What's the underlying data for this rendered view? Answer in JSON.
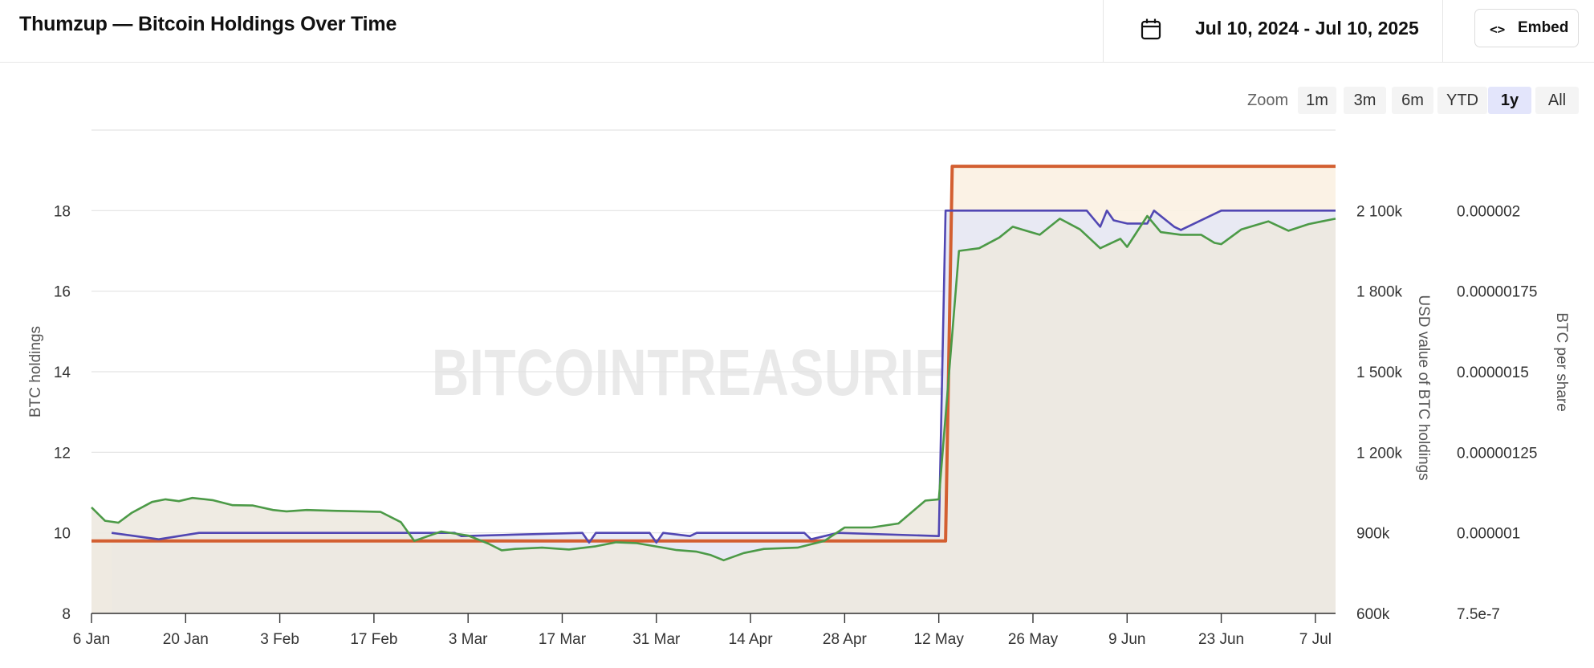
{
  "header": {
    "title": "Thumzup — Bitcoin Holdings Over Time",
    "date_range": "Jul 10, 2024 - Jul 10, 2025",
    "embed_label": "Embed",
    "icons": {
      "calendar": "calendar-icon",
      "embed": "code-icon"
    }
  },
  "zoom": {
    "label": "Zoom",
    "options": [
      "1m",
      "3m",
      "6m",
      "YTD",
      "1y",
      "All"
    ],
    "selected": "1y"
  },
  "watermark": "BITCOINTREASURIES.NET",
  "chart_data": {
    "type": "line",
    "grid": true,
    "x_ticks": [
      "6 Jan",
      "20 Jan",
      "3 Feb",
      "17 Feb",
      "3 Mar",
      "17 Mar",
      "31 Mar",
      "14 Apr",
      "28 Apr",
      "12 May",
      "26 May",
      "9 Jun",
      "23 Jun",
      "7 Jul"
    ],
    "x_tick_dates": [
      "2025-01-06",
      "2025-01-20",
      "2025-02-03",
      "2025-02-17",
      "2025-03-03",
      "2025-03-17",
      "2025-03-31",
      "2025-04-14",
      "2025-04-28",
      "2025-05-12",
      "2025-05-26",
      "2025-06-09",
      "2025-06-23",
      "2025-07-07"
    ],
    "x_range": [
      "2025-01-06",
      "2025-07-10"
    ],
    "axes": {
      "left": {
        "title": "BTC holdings",
        "ticks": [
          8,
          10,
          12,
          14,
          16,
          18
        ],
        "tick_labels": [
          "8",
          "10",
          "12",
          "14",
          "16",
          "18"
        ],
        "range": [
          8,
          20
        ]
      },
      "right1": {
        "title": "USD value of BTC holdings",
        "ticks": [
          600000,
          900000,
          1200000,
          1500000,
          1800000,
          2100000
        ],
        "tick_labels": [
          "600k",
          "900k",
          "1 200k",
          "1 500k",
          "1 800k",
          "2 100k"
        ],
        "range": [
          600000,
          2400000
        ]
      },
      "right2": {
        "title": "BTC per share",
        "ticks": [
          7.5e-07,
          1e-06,
          1.25e-06,
          1.5e-06,
          1.75e-06,
          2e-06
        ],
        "tick_labels": [
          "7.5e-7",
          "0.000001",
          "0.00000125",
          "0.0000015",
          "0.00000175",
          "0.000002"
        ],
        "range": [
          7.5e-07,
          2.25e-06
        ]
      }
    },
    "colors": {
      "btc_holdings": "#d35f31",
      "usd_value": "#4c9a47",
      "btc_per_share": "#5147b3",
      "fill_holdings": "#fbf1e2",
      "fill_usd": "#ede9e0",
      "fill_per_share": "#e6e8f4"
    },
    "series": [
      {
        "key": "btc_holdings",
        "axis": "left",
        "step": true,
        "x": [
          "2025-01-06",
          "2025-05-13",
          "2025-05-14",
          "2025-07-10"
        ],
        "values": [
          9.8,
          9.8,
          19.1,
          19.1
        ]
      },
      {
        "key": "usd_value",
        "axis": "right1",
        "x": [
          "2025-01-06",
          "2025-01-08",
          "2025-01-10",
          "2025-01-12",
          "2025-01-15",
          "2025-01-17",
          "2025-01-19",
          "2025-01-21",
          "2025-01-24",
          "2025-01-27",
          "2025-01-30",
          "2025-02-02",
          "2025-02-04",
          "2025-02-07",
          "2025-02-11",
          "2025-02-15",
          "2025-02-18",
          "2025-02-21",
          "2025-02-23",
          "2025-02-27",
          "2025-03-03",
          "2025-03-06",
          "2025-03-08",
          "2025-03-10",
          "2025-03-14",
          "2025-03-18",
          "2025-03-22",
          "2025-03-25",
          "2025-03-28",
          "2025-04-01",
          "2025-04-03",
          "2025-04-06",
          "2025-04-08",
          "2025-04-10",
          "2025-04-13",
          "2025-04-16",
          "2025-04-21",
          "2025-04-25",
          "2025-04-28",
          "2025-05-02",
          "2025-05-06",
          "2025-05-10",
          "2025-05-12",
          "2025-05-15",
          "2025-05-18",
          "2025-05-21",
          "2025-05-23",
          "2025-05-27",
          "2025-05-30",
          "2025-06-02",
          "2025-06-05",
          "2025-06-08",
          "2025-06-09",
          "2025-06-12",
          "2025-06-14",
          "2025-06-17",
          "2025-06-20",
          "2025-06-22",
          "2025-06-23",
          "2025-06-26",
          "2025-06-30",
          "2025-07-03",
          "2025-07-06",
          "2025-07-08",
          "2025-07-10"
        ],
        "values": [
          995000,
          945000,
          938000,
          975000,
          1015000,
          1025000,
          1018000,
          1030000,
          1022000,
          1003000,
          1002000,
          985000,
          980000,
          985000,
          982000,
          980000,
          978000,
          940000,
          870000,
          905000,
          890000,
          860000,
          835000,
          840000,
          845000,
          838000,
          850000,
          865000,
          862000,
          845000,
          836000,
          830000,
          818000,
          798000,
          825000,
          840000,
          845000,
          870000,
          920000,
          920000,
          935000,
          1020000,
          1025000,
          1950000,
          1960000,
          2000000,
          2040000,
          2010000,
          2070000,
          2030000,
          1960000,
          1995000,
          1965000,
          2080000,
          2020000,
          2010000,
          2010000,
          1980000,
          1975000,
          2030000,
          2060000,
          2025000,
          2050000,
          2060000,
          2070000
        ]
      },
      {
        "key": "btc_per_share",
        "axis": "right2",
        "x": [
          "2025-01-09",
          "2025-01-16",
          "2025-01-22",
          "2025-03-01",
          "2025-03-02",
          "2025-03-20",
          "2025-03-21",
          "2025-03-22",
          "2025-03-30",
          "2025-03-31",
          "2025-04-01",
          "2025-04-05",
          "2025-04-06",
          "2025-04-22",
          "2025-04-23",
          "2025-04-27",
          "2025-05-12",
          "2025-05-13",
          "2025-05-14",
          "2025-06-03",
          "2025-06-05",
          "2025-06-06",
          "2025-06-07",
          "2025-06-09",
          "2025-06-12",
          "2025-06-13",
          "2025-06-16",
          "2025-06-17",
          "2025-06-23",
          "2025-07-10"
        ],
        "values": [
          1e-06,
          9.8e-07,
          1e-06,
          1e-06,
          9.9e-07,
          1e-06,
          9.7e-07,
          1e-06,
          1e-06,
          9.7e-07,
          1e-06,
          9.9e-07,
          1e-06,
          1e-06,
          9.8e-07,
          1e-06,
          9.9e-07,
          2e-06,
          2e-06,
          2e-06,
          1.95e-06,
          2e-06,
          1.97e-06,
          1.96e-06,
          1.96e-06,
          2e-06,
          1.95e-06,
          1.94e-06,
          2e-06,
          2e-06
        ]
      }
    ]
  }
}
